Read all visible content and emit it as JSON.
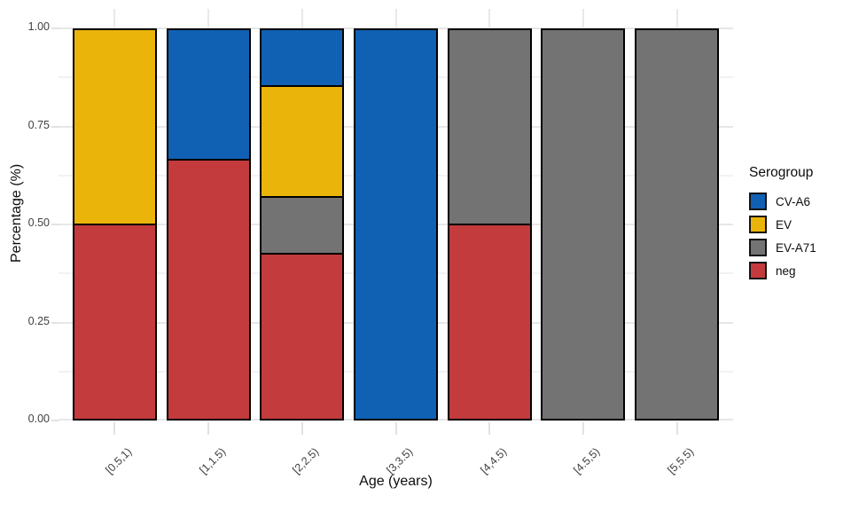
{
  "chart_data": {
    "type": "bar",
    "stacked": true,
    "title": "",
    "xlabel": "Age (years)",
    "ylabel": "Percentage (%)",
    "categories": [
      "[0.5,1)",
      "[1,1.5)",
      "[2,2.5)",
      "[3,3.5)",
      "[4,4.5)",
      "[4.5,5)",
      "[5,5.5)"
    ],
    "series": [
      {
        "name": "CV-A6",
        "color": "#1061b4",
        "values": [
          0,
          0.3333,
          0.1429,
          1,
          0,
          0,
          0
        ]
      },
      {
        "name": "EV",
        "color": "#ebb40b",
        "values": [
          0.5,
          0,
          0.2857,
          0,
          0,
          0,
          0
        ]
      },
      {
        "name": "EV-A71",
        "color": "#737373",
        "values": [
          0,
          0,
          0.1429,
          0,
          0.5,
          1,
          1
        ]
      },
      {
        "name": "neg",
        "color": "#c33b3c",
        "values": [
          0.5,
          0.6667,
          0.4286,
          0,
          0.5,
          0,
          0
        ]
      }
    ],
    "stack_order_bottom_to_top": [
      "neg",
      "EV-A71",
      "EV",
      "CV-A6"
    ],
    "y_ticks": [
      "0.00",
      "0.25",
      "0.50",
      "0.75",
      "1.00"
    ],
    "y_tick_values": [
      0,
      0.25,
      0.5,
      0.75,
      1
    ],
    "y_minor_values": [
      0.125,
      0.375,
      0.625,
      0.875
    ],
    "ylim": [
      0,
      1
    ],
    "grid": true,
    "bar_outline_color": "#000000",
    "grid_major_color": "#e7e7e7",
    "grid_minor_color": "#f2f2f2",
    "legend_title": "Serogroup",
    "legend_position": "right"
  }
}
